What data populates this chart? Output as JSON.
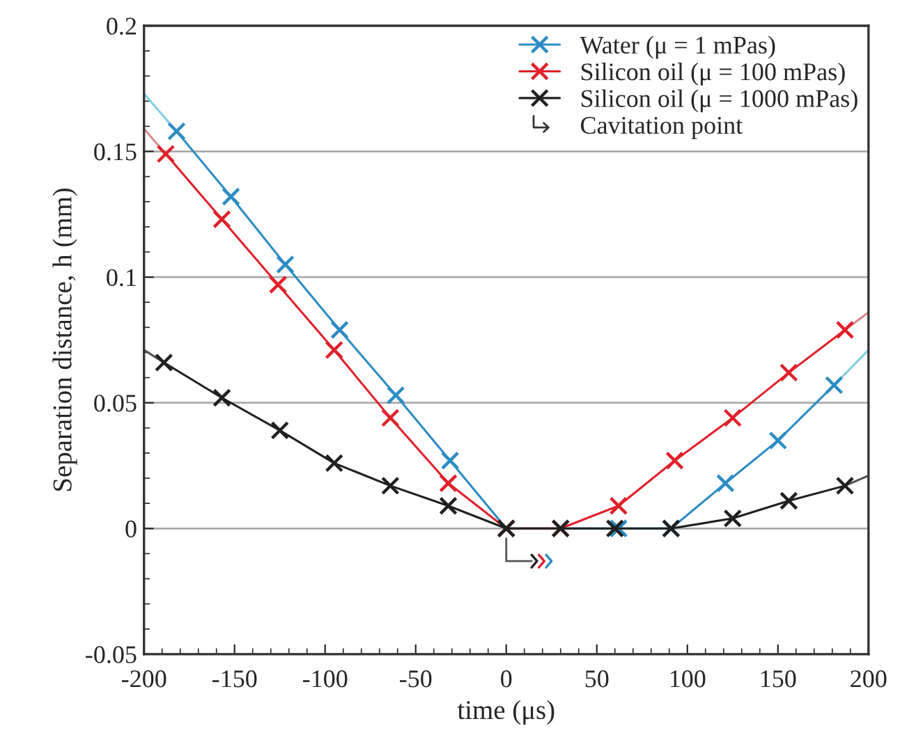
{
  "chart_data": {
    "type": "line",
    "xlabel": "time (μs)",
    "ylabel": "Separation distance, h (mm)",
    "xlim": [
      -200,
      200
    ],
    "xticks": [
      -200,
      -150,
      -100,
      -50,
      0,
      50,
      100,
      150,
      200
    ],
    "ylim": [
      -0.05,
      0.2
    ],
    "yticks": [
      -0.05,
      0,
      0.05,
      0.1,
      0.15,
      0.2
    ],
    "grid": "y",
    "legend": "top right",
    "marker": "cross",
    "line_style": "solid",
    "annotations": [
      "Cavitation point"
    ],
    "series": [
      {
        "name": "Water (μ = 1 mPas)",
        "color": "#2b8cc4",
        "x": [
          -182,
          -152,
          -122,
          -92,
          -61,
          -31,
          0,
          62,
          91,
          121,
          150,
          181
        ],
        "values": [
          0.158,
          0.132,
          0.105,
          0.079,
          0.053,
          0.027,
          0,
          0,
          0,
          0.018,
          0.035,
          0.057
        ]
      },
      {
        "name": "Silicon oil (μ = 100 mPas)",
        "color": "#e0202a",
        "x": [
          -188,
          -157,
          -126,
          -95,
          -64,
          -32,
          0,
          30,
          62,
          93,
          125,
          156,
          187
        ],
        "values": [
          0.149,
          0.123,
          0.097,
          0.071,
          0.044,
          0.018,
          0,
          0,
          0.009,
          0.027,
          0.044,
          0.062,
          0.079
        ]
      },
      {
        "name": "Silicon oil (μ = 1000 mPas)",
        "color": "#202020",
        "x": [
          -189,
          -157,
          -125,
          -95,
          -64,
          -32,
          0,
          30,
          60,
          91,
          125,
          156,
          187
        ],
        "values": [
          0.066,
          0.052,
          0.039,
          0.026,
          0.017,
          0.009,
          0,
          0,
          0,
          0,
          0.004,
          0.011,
          0.017
        ]
      },
      {
        "color": "#7fcfe0",
        "marker": "none",
        "x": [
          -200,
          -182,
          0,
          181,
          200
        ],
        "values": [
          0.173,
          0.158,
          null,
          0.057,
          0.071
        ]
      },
      {
        "color": "#d88890",
        "marker": "none",
        "x": [
          -200,
          -188,
          0,
          187,
          200
        ],
        "values": [
          0.159,
          0.149,
          null,
          0.079,
          0.086
        ]
      },
      {
        "color": "#505050",
        "marker": "none",
        "x": [
          -200,
          -189,
          0,
          187,
          200
        ],
        "values": [
          0.071,
          0.066,
          null,
          0.017,
          0.021
        ]
      }
    ]
  }
}
